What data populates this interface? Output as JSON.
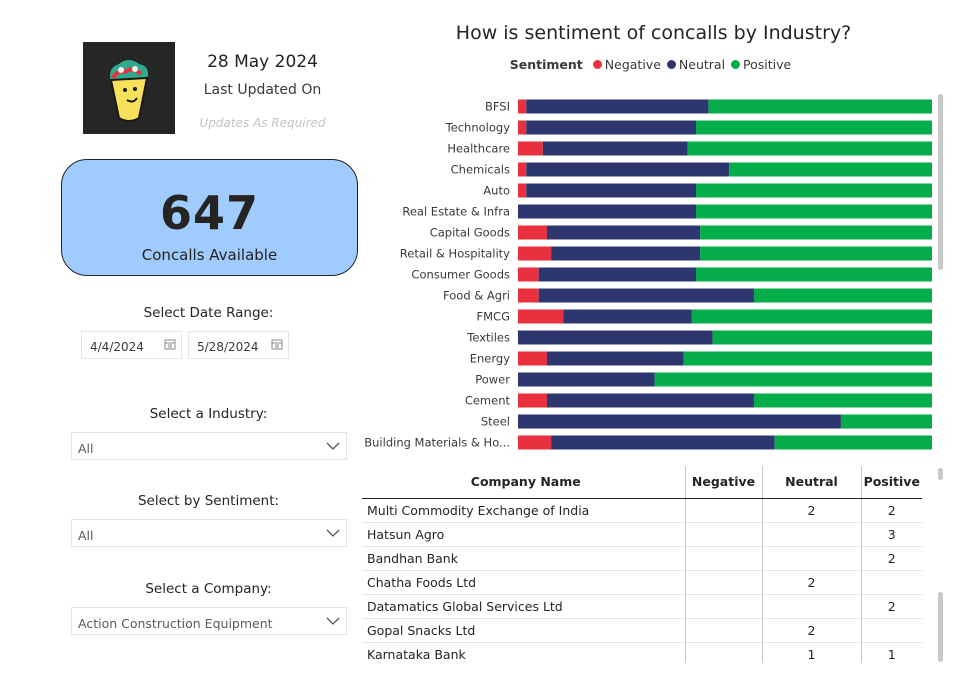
{
  "header": {
    "date": "28 May 2024",
    "last_updated_label": "Last Updated On",
    "updates_note": "Updates As Required"
  },
  "kpi": {
    "value": "647",
    "label": "Concalls Available"
  },
  "filters": {
    "date_range_label": "Select Date Range:",
    "start_date": "4/4/2024",
    "end_date": "5/28/2024",
    "industry_label": "Select a Industry:",
    "industry_value": "All",
    "sentiment_label": "Select by Sentiment:",
    "sentiment_value": "All",
    "company_label": "Select a Company:",
    "company_value": "Action Construction Equipment"
  },
  "chart_data": {
    "type": "bar",
    "orientation": "horizontal",
    "stacked": "100%",
    "title": "How is sentiment of concalls by Industry?",
    "legend_title": "Sentiment",
    "categories": [
      "BFSI",
      "Technology",
      "Healthcare",
      "Chemicals",
      "Auto",
      "Real Estate & Infra",
      "Capital Goods",
      "Retail & Hospitality",
      "Consumer Goods",
      "Food & Agri",
      "FMCG",
      "Textiles",
      "Energy",
      "Power",
      "Cement",
      "Steel",
      "Building Materials & Ho..."
    ],
    "series": [
      {
        "name": "Negative",
        "color": "#e8303e",
        "values": [
          2,
          2,
          6,
          2,
          2,
          0,
          7,
          8,
          5,
          5,
          11,
          0,
          7,
          0,
          7,
          0,
          8
        ]
      },
      {
        "name": "Neutral",
        "color": "#2e3670",
        "values": [
          44,
          41,
          35,
          49,
          41,
          43,
          37,
          36,
          38,
          52,
          31,
          47,
          33,
          33,
          50,
          78,
          54
        ]
      },
      {
        "name": "Positive",
        "color": "#05ac4a",
        "values": [
          54,
          57,
          59,
          49,
          57,
          57,
          56,
          56,
          57,
          43,
          58,
          53,
          60,
          67,
          43,
          22,
          38
        ]
      }
    ],
    "xlim": [
      0,
      100
    ]
  },
  "table": {
    "columns": [
      "Company Name",
      "Negative",
      "Neutral",
      "Positive"
    ],
    "rows": [
      [
        "Multi Commodity Exchange of India",
        "",
        "2",
        "2"
      ],
      [
        "Hatsun Agro",
        "",
        "",
        "3"
      ],
      [
        "Bandhan Bank",
        "",
        "",
        "2"
      ],
      [
        "Chatha Foods Ltd",
        "",
        "2",
        ""
      ],
      [
        "Datamatics Global Services Ltd",
        "",
        "",
        "2"
      ],
      [
        "Gopal Snacks Ltd",
        "",
        "2",
        ""
      ],
      [
        "Karnataka Bank",
        "",
        "1",
        "1"
      ]
    ]
  }
}
